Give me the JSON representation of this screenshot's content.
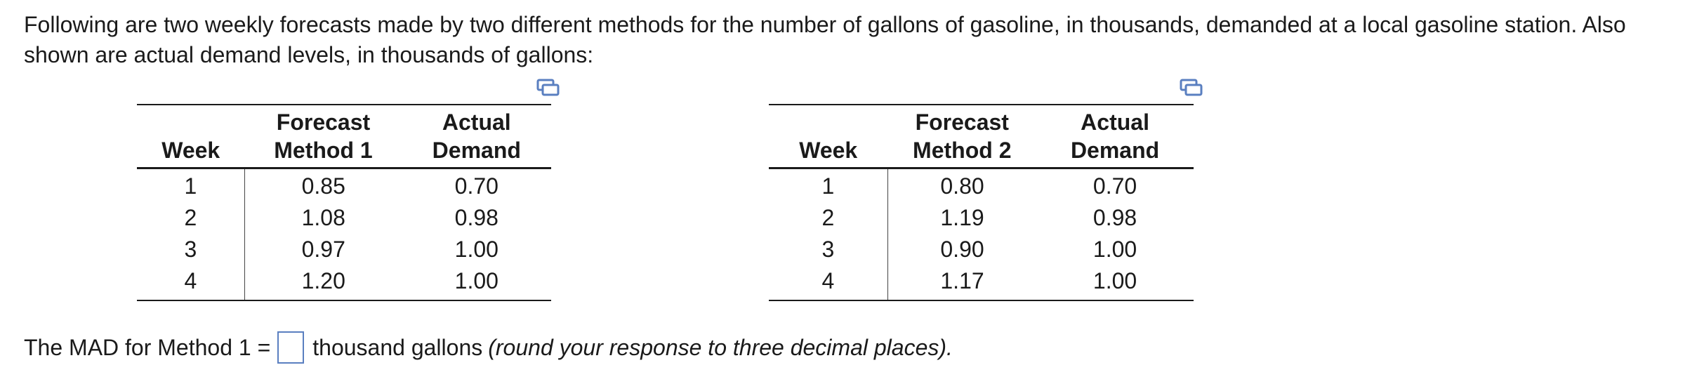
{
  "intro_text": "Following are two weekly forecasts made by two different methods for the number of gallons of gasoline, in thousands, demanded at a local gasoline station. Also shown are actual demand levels, in thousands of gallons:",
  "table1": {
    "headers": {
      "week": "Week",
      "forecast_line1": "Forecast",
      "forecast_line2": "Method 1",
      "actual_line1": "Actual",
      "actual_line2": "Demand"
    },
    "rows": [
      {
        "week": "1",
        "forecast": "0.85",
        "actual": "0.70"
      },
      {
        "week": "2",
        "forecast": "1.08",
        "actual": "0.98"
      },
      {
        "week": "3",
        "forecast": "0.97",
        "actual": "1.00"
      },
      {
        "week": "4",
        "forecast": "1.20",
        "actual": "1.00"
      }
    ]
  },
  "table2": {
    "headers": {
      "week": "Week",
      "forecast_line1": "Forecast",
      "forecast_line2": "Method 2",
      "actual_line1": "Actual",
      "actual_line2": "Demand"
    },
    "rows": [
      {
        "week": "1",
        "forecast": "0.80",
        "actual": "0.70"
      },
      {
        "week": "2",
        "forecast": "1.19",
        "actual": "0.98"
      },
      {
        "week": "3",
        "forecast": "0.90",
        "actual": "1.00"
      },
      {
        "week": "4",
        "forecast": "1.17",
        "actual": "1.00"
      }
    ]
  },
  "question": {
    "prefix": "The MAD for Method 1 =",
    "answer_value": "",
    "suffix": "thousand gallons",
    "hint": "(round your response to three decimal places)."
  },
  "icons": {
    "copy_table_1": "copy-data-icon",
    "copy_table_2": "copy-data-icon"
  },
  "colors": {
    "icon_accent": "#5a7fc0",
    "answer_border": "#5a7fc0"
  }
}
